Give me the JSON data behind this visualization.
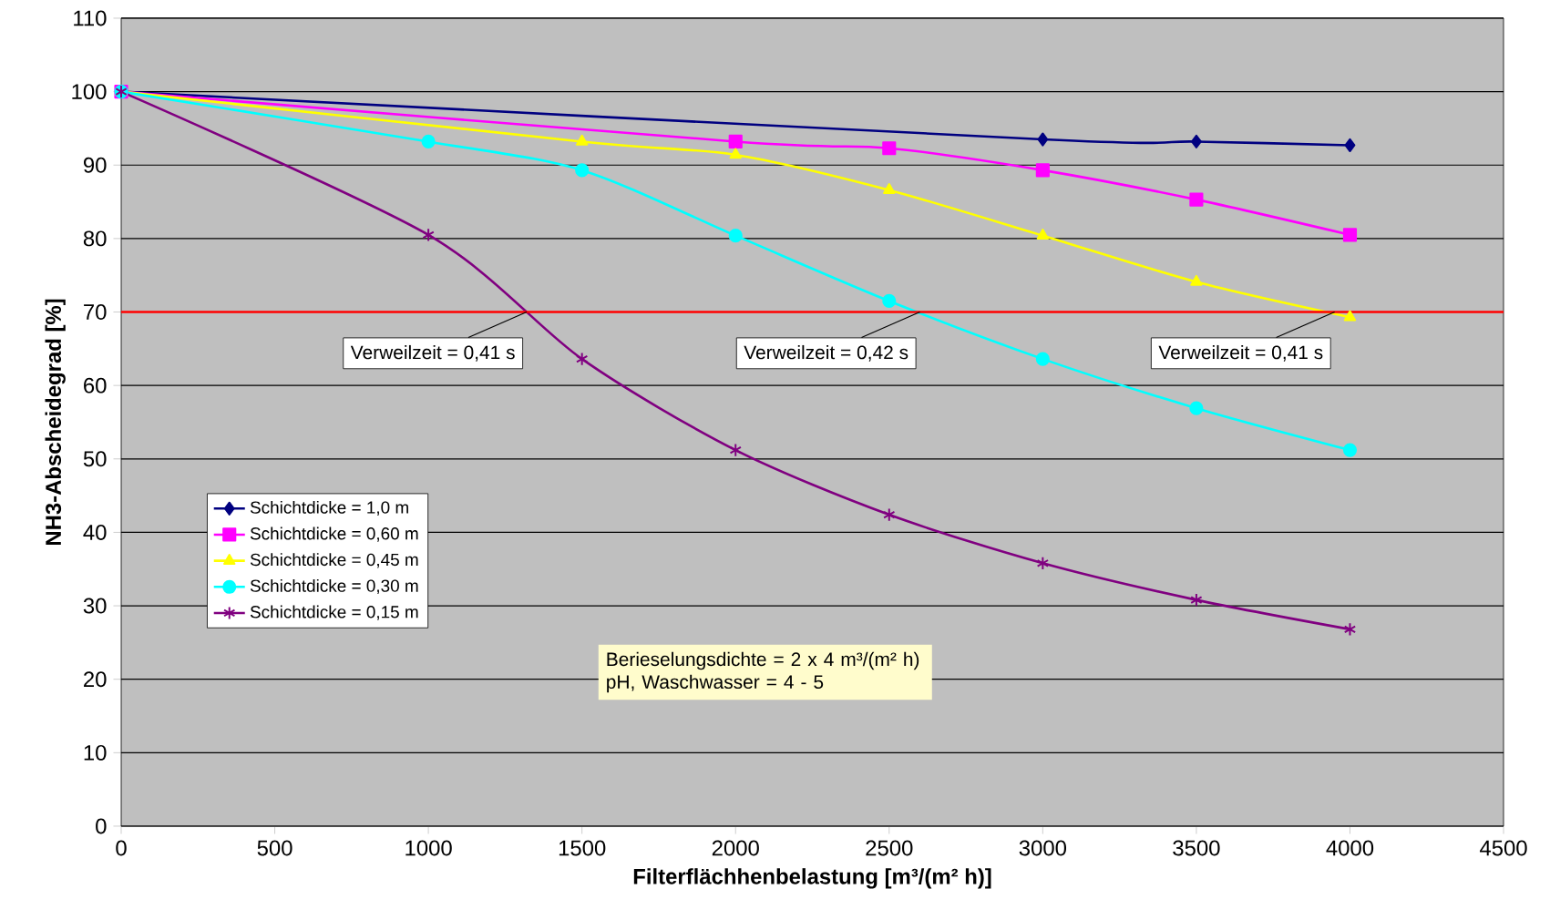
{
  "chart_data": {
    "type": "line",
    "xlabel": "Filterflächhenbelastung [m³/(m² h)]",
    "ylabel": "NH3-Abscheidegrad [%]",
    "xlim": [
      0,
      4500
    ],
    "ylim": [
      0,
      110
    ],
    "xticks": [
      0,
      500,
      1000,
      1500,
      2000,
      2500,
      3000,
      3500,
      4000,
      4500
    ],
    "yticks": [
      0,
      10,
      20,
      30,
      40,
      50,
      60,
      70,
      80,
      90,
      100,
      110
    ],
    "grid": "y",
    "legend": "left",
    "series": [
      {
        "name": "Schichtdicke = 1,0 m",
        "color": "#000080",
        "marker": "diamond",
        "x": [
          0,
          3000,
          3500,
          4000
        ],
        "values": [
          100,
          93.5,
          93.2,
          92.7
        ]
      },
      {
        "name": "Schichtdicke = 0,60 m",
        "color": "#ff00ff",
        "marker": "square",
        "x": [
          0,
          2000,
          2500,
          3000,
          3500,
          4000
        ],
        "values": [
          100,
          93.2,
          92.3,
          89.3,
          85.3,
          80.5
        ]
      },
      {
        "name": "Schichtdicke = 0,45 m",
        "color": "#ffff00",
        "marker": "triangle",
        "x": [
          0,
          1500,
          2000,
          2500,
          3000,
          3500,
          4000
        ],
        "values": [
          100,
          93.2,
          91.4,
          86.6,
          80.4,
          74.1,
          69.3
        ]
      },
      {
        "name": "Schichtdicke = 0,30 m",
        "color": "#00ffff",
        "marker": "circle",
        "x": [
          0,
          1000,
          1500,
          2000,
          2500,
          3000,
          3500,
          4000
        ],
        "values": [
          100,
          93.2,
          89.3,
          80.4,
          71.5,
          63.6,
          56.9,
          51.2
        ]
      },
      {
        "name": "Schichtdicke = 0,15 m",
        "color": "#800080",
        "marker": "cross",
        "x": [
          0,
          1000,
          1500,
          2000,
          2500,
          3000,
          3500,
          4000
        ],
        "values": [
          100,
          80.5,
          63.6,
          51.2,
          42.4,
          35.8,
          30.8,
          26.8
        ]
      }
    ],
    "ref_lines": [
      {
        "axis": "y",
        "value": 70,
        "color": "#ff0000"
      }
    ],
    "annotations": [
      {
        "text": "Verweilzeit = 0,41 s",
        "x": 1320,
        "y": 70
      },
      {
        "text": "Verweilzeit = 0,42 s",
        "x": 2600,
        "y": 70
      },
      {
        "text": "Verweilzeit = 0,41 s",
        "x": 3950,
        "y": 70
      },
      "Berieselungsdichte = 2 x 4 m³/(m² h)",
      "pH, Waschwasser =  4 - 5"
    ]
  }
}
